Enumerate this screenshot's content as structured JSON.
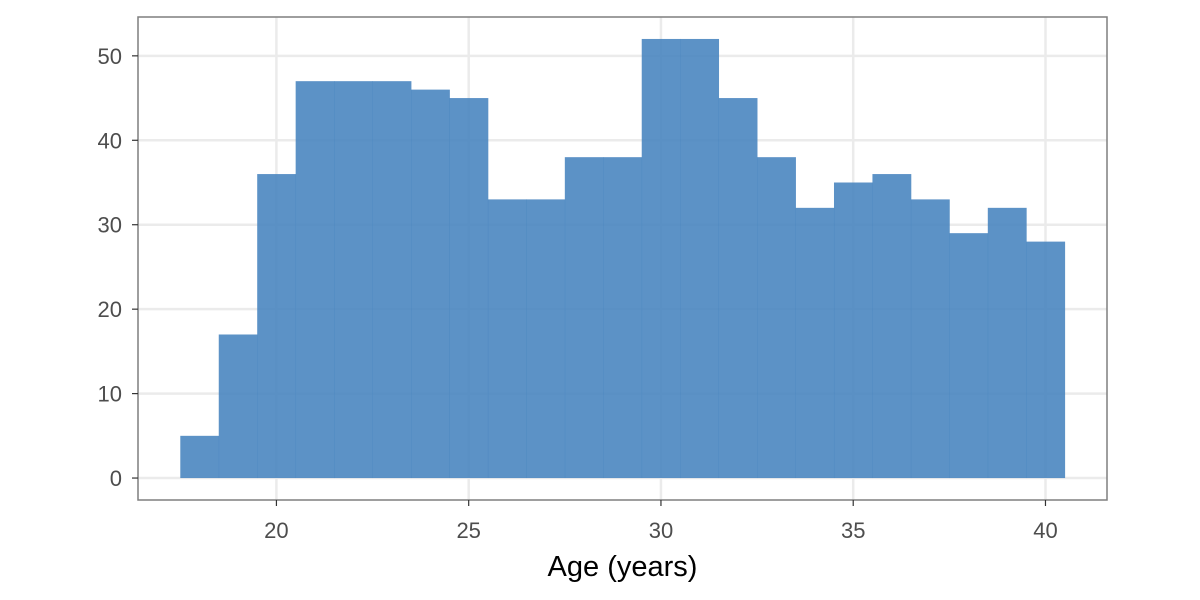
{
  "chart_data": {
    "type": "bar",
    "subtype": "histogram",
    "title": "",
    "xlabel": "Age (years)",
    "ylabel": "",
    "bin_width": 1,
    "bins": [
      {
        "x": 18,
        "count": 5
      },
      {
        "x": 19,
        "count": 17
      },
      {
        "x": 20,
        "count": 36
      },
      {
        "x": 21,
        "count": 47
      },
      {
        "x": 22,
        "count": 47
      },
      {
        "x": 23,
        "count": 47
      },
      {
        "x": 24,
        "count": 46
      },
      {
        "x": 25,
        "count": 45
      },
      {
        "x": 26,
        "count": 33
      },
      {
        "x": 27,
        "count": 33
      },
      {
        "x": 28,
        "count": 38
      },
      {
        "x": 29,
        "count": 38
      },
      {
        "x": 30,
        "count": 52
      },
      {
        "x": 31,
        "count": 52
      },
      {
        "x": 32,
        "count": 45
      },
      {
        "x": 33,
        "count": 38
      },
      {
        "x": 34,
        "count": 32
      },
      {
        "x": 35,
        "count": 35
      },
      {
        "x": 36,
        "count": 36
      },
      {
        "x": 37,
        "count": 33
      },
      {
        "x": 38,
        "count": 29
      },
      {
        "x": 39,
        "count": 32
      },
      {
        "x": 40,
        "count": 28
      }
    ],
    "xlim": [
      16.4,
      41.6
    ],
    "ylim": [
      -2.6,
      54.6
    ],
    "x_ticks": [
      "20",
      "25",
      "30",
      "35",
      "40"
    ],
    "y_ticks": [
      "0",
      "10",
      "20",
      "30",
      "40",
      "50"
    ],
    "bar_color": "#4a86c0",
    "grid": true,
    "legend": "none"
  }
}
